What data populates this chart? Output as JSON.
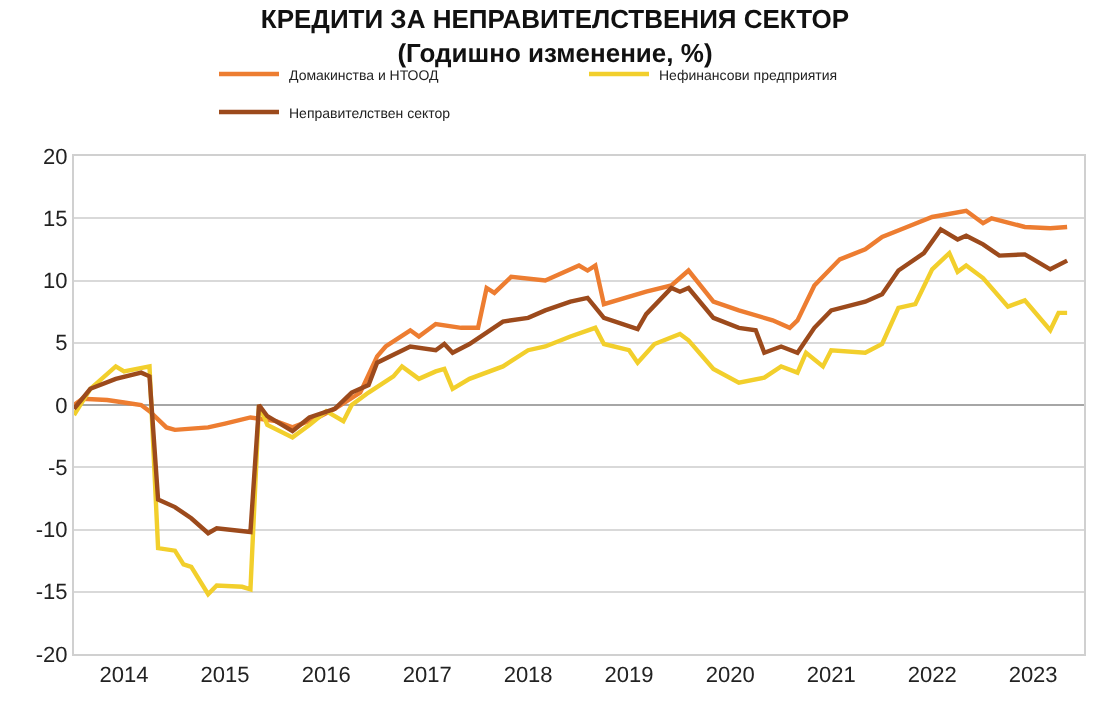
{
  "chart_data": {
    "type": "line",
    "title": "КРЕДИТИ ЗА НЕПРАВИТЕЛСТВЕНИЯ СЕКТОР",
    "subtitle": "(Годишно изменение, %)",
    "xlim": [
      "2014-01",
      "2024-01"
    ],
    "xticks": [
      {
        "value": "2014-07",
        "label": "2014"
      },
      {
        "value": "2015-07",
        "label": "2015"
      },
      {
        "value": "2016-07",
        "label": "2016"
      },
      {
        "value": "2017-07",
        "label": "2017"
      },
      {
        "value": "2018-07",
        "label": "2018"
      },
      {
        "value": "2019-07",
        "label": "2019"
      },
      {
        "value": "2020-07",
        "label": "2020"
      },
      {
        "value": "2021-07",
        "label": "2021"
      },
      {
        "value": "2022-07",
        "label": "2022"
      },
      {
        "value": "2023-07",
        "label": "2023"
      }
    ],
    "ylim": [
      -20,
      20
    ],
    "yticks": [
      -20,
      -15,
      -10,
      -5,
      0,
      5,
      10,
      15,
      20
    ],
    "grid": "y",
    "legend": "top",
    "line_style": "solid",
    "marker": "none",
    "series": [
      {
        "name": "Домакинства и НТООД",
        "color": "#ed7d31",
        "x": [
          "2014-01",
          "2014-02",
          "2014-05",
          "2014-07",
          "2014-09",
          "2014-10",
          "2014-12",
          "2015-01",
          "2015-05",
          "2015-07",
          "2015-10",
          "2016-01",
          "2016-03",
          "2016-06",
          "2016-08",
          "2016-11",
          "2017-01",
          "2017-02",
          "2017-05",
          "2017-06",
          "2017-08",
          "2017-11",
          "2018-01",
          "2018-02",
          "2018-03",
          "2018-05",
          "2018-09",
          "2019-01",
          "2019-02",
          "2019-03",
          "2019-04",
          "2019-09",
          "2019-12",
          "2020-02",
          "2020-05",
          "2020-08",
          "2020-12",
          "2021-02",
          "2021-03",
          "2021-05",
          "2021-08",
          "2021-11",
          "2022-01",
          "2022-04",
          "2022-07",
          "2022-11",
          "2023-01",
          "2023-02",
          "2023-06",
          "2023-09",
          "2023-11"
        ],
        "values": [
          0,
          0.5,
          0.4,
          0.2,
          0,
          -0.5,
          -1.8,
          -2.0,
          -1.8,
          -1.5,
          -1.0,
          -1.3,
          -1.8,
          -1.0,
          -0.3,
          1.0,
          3.9,
          4.7,
          6.0,
          5.5,
          6.5,
          6.2,
          6.2,
          9.4,
          9.0,
          10.3,
          10.0,
          11.2,
          10.8,
          11.2,
          8.1,
          9.1,
          9.6,
          10.8,
          8.3,
          7.6,
          6.8,
          6.2,
          6.8,
          9.6,
          11.7,
          12.5,
          13.5,
          14.3,
          15.1,
          15.6,
          14.6,
          15.0,
          14.3,
          14.2,
          14.3
        ]
      },
      {
        "name": "Нефинансови предприятия",
        "color": "#f2cf2c",
        "x": [
          "2014-01",
          "2014-03",
          "2014-06",
          "2014-07",
          "2014-10",
          "2014-11",
          "2015-01",
          "2015-02",
          "2015-03",
          "2015-05",
          "2015-06",
          "2015-09",
          "2015-10",
          "2015-11",
          "2015-12",
          "2016-03",
          "2016-05",
          "2016-07",
          "2016-09",
          "2016-10",
          "2016-12",
          "2017-03",
          "2017-04",
          "2017-06",
          "2017-08",
          "2017-09",
          "2017-10",
          "2017-12",
          "2018-04",
          "2018-07",
          "2018-09",
          "2018-12",
          "2019-03",
          "2019-04",
          "2019-07",
          "2019-08",
          "2019-10",
          "2020-01",
          "2020-02",
          "2020-05",
          "2020-08",
          "2020-11",
          "2021-01",
          "2021-03",
          "2021-04",
          "2021-06",
          "2021-07",
          "2021-11",
          "2022-01",
          "2022-03",
          "2022-05",
          "2022-07",
          "2022-09",
          "2022-10",
          "2022-11",
          "2023-01",
          "2023-04",
          "2023-06",
          "2023-09",
          "2023-10",
          "2023-11"
        ],
        "values": [
          -0.8,
          1.3,
          3.1,
          2.7,
          3.1,
          -11.5,
          -11.7,
          -12.8,
          -13,
          -15.2,
          -14.5,
          -14.6,
          -14.8,
          0,
          -1.6,
          -2.6,
          -1.6,
          -0.5,
          -1.3,
          0,
          1.0,
          2.3,
          3.1,
          2.1,
          2.7,
          2.9,
          1.3,
          2.1,
          3.1,
          4.4,
          4.7,
          5.5,
          6.2,
          4.9,
          4.4,
          3.4,
          4.9,
          5.7,
          5.2,
          2.9,
          1.8,
          2.2,
          3.1,
          2.6,
          4.2,
          3.1,
          4.4,
          4.2,
          4.9,
          7.8,
          8.1,
          10.9,
          12.2,
          10.7,
          11.2,
          10.2,
          7.9,
          8.4,
          6.0,
          7.4,
          7.4
        ]
      },
      {
        "name": "Неправителствен сектор",
        "color": "#9c4a1c",
        "x": [
          "2014-01",
          "2014-03",
          "2014-06",
          "2014-09",
          "2014-10",
          "2014-11",
          "2015-01",
          "2015-03",
          "2015-05",
          "2015-06",
          "2015-10",
          "2015-11",
          "2015-12",
          "2016-03",
          "2016-05",
          "2016-08",
          "2016-10",
          "2016-12",
          "2017-01",
          "2017-05",
          "2017-08",
          "2017-09",
          "2017-10",
          "2017-12",
          "2018-04",
          "2018-07",
          "2018-09",
          "2018-12",
          "2019-02",
          "2019-04",
          "2019-08",
          "2019-09",
          "2019-12",
          "2020-01",
          "2020-02",
          "2020-05",
          "2020-08",
          "2020-10",
          "2020-11",
          "2021-01",
          "2021-03",
          "2021-05",
          "2021-07",
          "2021-11",
          "2022-01",
          "2022-03",
          "2022-06",
          "2022-08",
          "2022-10",
          "2022-11",
          "2023-01",
          "2023-03",
          "2023-06",
          "2023-09",
          "2023-11"
        ],
        "values": [
          -0.3,
          1.3,
          2.1,
          2.6,
          2.3,
          -7.6,
          -8.2,
          -9.1,
          -10.3,
          -9.9,
          -10.2,
          0,
          -0.9,
          -2.1,
          -1.0,
          -0.3,
          1.0,
          1.6,
          3.4,
          4.7,
          4.4,
          4.9,
          4.2,
          4.9,
          6.7,
          7.0,
          7.6,
          8.3,
          8.6,
          7.0,
          6.1,
          7.3,
          9.4,
          9.1,
          9.4,
          7.0,
          6.2,
          6.0,
          4.2,
          4.7,
          4.2,
          6.2,
          7.6,
          8.3,
          8.9,
          10.8,
          12.2,
          14.1,
          13.3,
          13.6,
          12.9,
          12.0,
          12.1,
          10.9,
          11.6
        ]
      }
    ]
  }
}
